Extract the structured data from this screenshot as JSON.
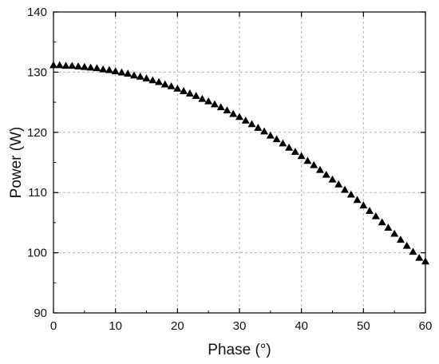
{
  "chart_data": {
    "type": "scatter",
    "title": "",
    "xlabel": "Phase (°)",
    "ylabel": "Power (W)",
    "xlim": [
      0,
      60
    ],
    "ylim": [
      90,
      140
    ],
    "xticks": [
      0,
      10,
      20,
      30,
      40,
      50,
      60
    ],
    "yticks": [
      90,
      100,
      110,
      120,
      130,
      140
    ],
    "grid": true,
    "legend": "none",
    "marker": "filled-triangle",
    "marker_color": "#000000",
    "series": [
      {
        "x": [
          0,
          1,
          2,
          3,
          4,
          5,
          6,
          7,
          8,
          9,
          10,
          11,
          12,
          13,
          14,
          15,
          16,
          17,
          18,
          19,
          20,
          21,
          22,
          23,
          24,
          25,
          26,
          27,
          28,
          29,
          30,
          31,
          32,
          33,
          34,
          35,
          36,
          37,
          38,
          39,
          40,
          41,
          42,
          43,
          44,
          45,
          46,
          47,
          48,
          49,
          50,
          51,
          52,
          53,
          54,
          55,
          56,
          57,
          58,
          59,
          60
        ],
        "y": [
          131.1,
          131.1,
          131.0,
          131.0,
          130.9,
          130.8,
          130.7,
          130.6,
          130.4,
          130.3,
          130.1,
          129.9,
          129.7,
          129.4,
          129.2,
          128.9,
          128.6,
          128.3,
          127.9,
          127.6,
          127.2,
          126.8,
          126.4,
          126.0,
          125.5,
          125.1,
          124.6,
          124.1,
          123.6,
          123.0,
          122.5,
          121.9,
          121.3,
          120.7,
          120.1,
          119.4,
          118.8,
          118.1,
          117.4,
          116.7,
          116.0,
          115.2,
          114.5,
          113.7,
          112.9,
          112.1,
          111.3,
          110.4,
          109.6,
          108.7,
          107.8,
          106.9,
          106.0,
          105.0,
          104.1,
          103.1,
          102.1,
          101.1,
          100.1,
          99.1,
          98.5
        ]
      }
    ]
  }
}
